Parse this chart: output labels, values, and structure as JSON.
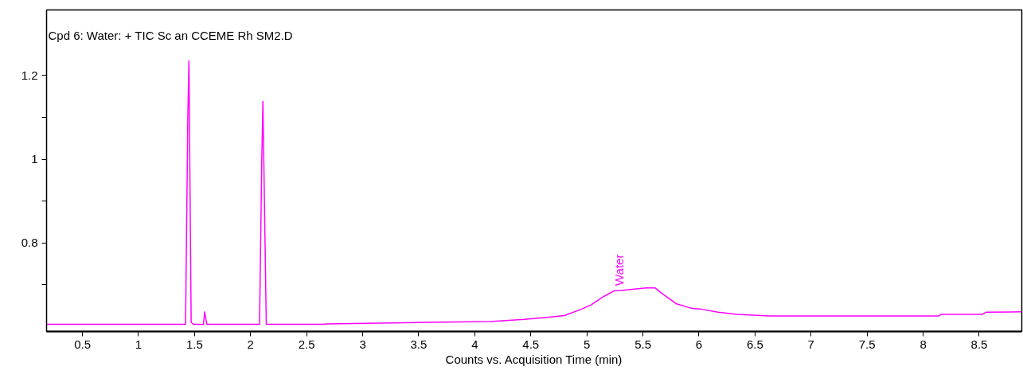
{
  "chart_data": {
    "type": "line",
    "title": "Cpd 6: Water: + TIC Sc an CCEME Rh SM2.D",
    "xlabel": "Counts vs. Acquisition Time (min)",
    "x": [
      0.18,
      1.42,
      1.44,
      1.45,
      1.47,
      1.49,
      1.58,
      1.59,
      1.61,
      2.08,
      2.1,
      2.11,
      2.14,
      2.64,
      2.68,
      3.58,
      4.14,
      4.44,
      4.61,
      4.8,
      4.95,
      5.04,
      5.14,
      5.24,
      5.3,
      5.53,
      5.61,
      5.66,
      5.8,
      5.94,
      6.01,
      6.17,
      6.34,
      6.63,
      8.14,
      8.16,
      8.53,
      8.56,
      8.88
    ],
    "series": [
      {
        "color": "#ff00ff",
        "values": [
          0.605,
          0.605,
          1.1,
          1.235,
          0.61,
          0.605,
          0.605,
          0.635,
          0.605,
          0.605,
          1.0,
          1.138,
          0.605,
          0.605,
          0.606,
          0.61,
          0.612,
          0.617,
          0.621,
          0.626,
          0.641,
          0.652,
          0.67,
          0.685,
          0.686,
          0.692,
          0.692,
          0.681,
          0.654,
          0.643,
          0.642,
          0.634,
          0.629,
          0.625,
          0.625,
          0.629,
          0.629,
          0.634,
          0.635
        ]
      }
    ],
    "annotations": [
      {
        "text": "Water",
        "x": 5.22,
        "y": 0.686
      }
    ],
    "xlim": [
      0.18,
      8.88
    ],
    "ylim": [
      0.588,
      1.357
    ],
    "xticks": [
      0.5,
      1,
      1.5,
      2,
      2.5,
      3,
      3.5,
      4,
      4.5,
      5,
      5.5,
      6,
      6.5,
      7,
      7.5,
      8,
      8.5
    ],
    "yticks": [
      {
        "value": 0.7,
        "label": null
      },
      0.8,
      {
        "value": 0.9,
        "label": null
      },
      1,
      {
        "value": 1.1,
        "label": null
      },
      1.2
    ],
    "grid": false
  }
}
